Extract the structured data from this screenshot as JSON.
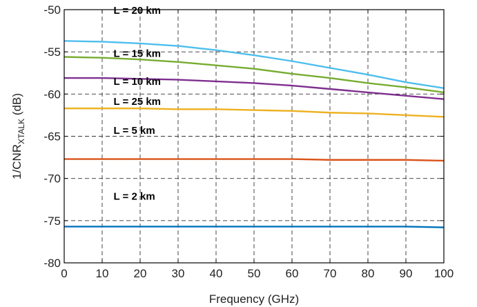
{
  "chart_data": {
    "type": "line",
    "xlabel": "Frequency (GHz)",
    "ylabel_main": "1/CNR",
    "ylabel_sub": "XTALK",
    "ylabel_unit": " (dB)",
    "xlim": [
      0,
      100
    ],
    "ylim": [
      -80,
      -50
    ],
    "xticks": [
      0,
      10,
      20,
      30,
      40,
      50,
      60,
      70,
      80,
      90,
      100
    ],
    "yticks": [
      -80,
      -75,
      -70,
      -65,
      -60,
      -55,
      -50
    ],
    "grid": true,
    "series": [
      {
        "label": "L = 25 km",
        "color": "#4DBEEE",
        "x": [
          0,
          10,
          20,
          30,
          40,
          50,
          60,
          70,
          80,
          90,
          100
        ],
        "y": [
          -53.7,
          -53.8,
          -54.0,
          -54.3,
          -54.8,
          -55.4,
          -56.1,
          -56.9,
          -57.7,
          -58.6,
          -59.3
        ]
      },
      {
        "label": "L = 20 km",
        "color": "#77AC30",
        "x": [
          0,
          10,
          20,
          30,
          40,
          50,
          60,
          70,
          80,
          90,
          100
        ],
        "y": [
          -55.6,
          -55.7,
          -55.9,
          -56.2,
          -56.6,
          -57.0,
          -57.6,
          -58.1,
          -58.7,
          -59.2,
          -59.8
        ]
      },
      {
        "label": "L = 15 km",
        "color": "#7E2F8E",
        "x": [
          0,
          10,
          20,
          30,
          40,
          50,
          60,
          70,
          80,
          90,
          100
        ],
        "y": [
          -58.1,
          -58.1,
          -58.2,
          -58.3,
          -58.5,
          -58.7,
          -59.0,
          -59.4,
          -59.8,
          -60.2,
          -60.6
        ]
      },
      {
        "label": "L = 10 km",
        "color": "#EDB120",
        "x": [
          0,
          10,
          20,
          30,
          40,
          50,
          60,
          70,
          80,
          90,
          100
        ],
        "y": [
          -61.7,
          -61.7,
          -61.7,
          -61.8,
          -61.8,
          -61.9,
          -62.0,
          -62.2,
          -62.3,
          -62.5,
          -62.7
        ]
      },
      {
        "label": "L = 5 km",
        "color": "#D95319",
        "x": [
          0,
          10,
          20,
          30,
          40,
          50,
          60,
          70,
          80,
          90,
          100
        ],
        "y": [
          -67.7,
          -67.7,
          -67.7,
          -67.7,
          -67.7,
          -67.7,
          -67.7,
          -67.8,
          -67.8,
          -67.8,
          -67.9
        ]
      },
      {
        "label": "L = 2 km",
        "color": "#0072BD",
        "x": [
          0,
          10,
          20,
          30,
          40,
          50,
          60,
          70,
          80,
          90,
          100
        ],
        "y": [
          -75.7,
          -75.7,
          -75.7,
          -75.7,
          -75.7,
          -75.7,
          -75.7,
          -75.7,
          -75.7,
          -75.7,
          -75.8
        ]
      }
    ]
  }
}
